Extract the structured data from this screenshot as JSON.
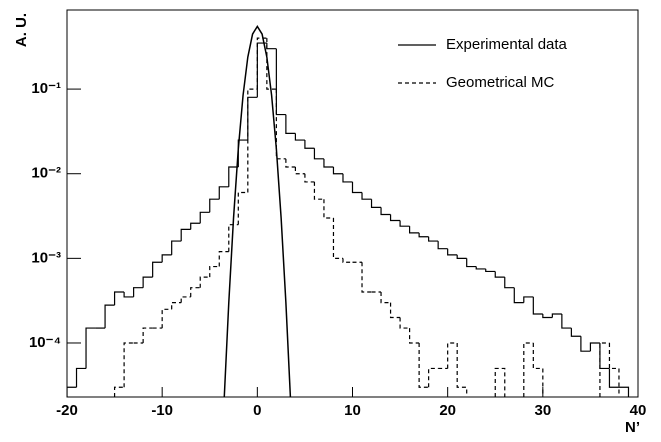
{
  "chart_data": {
    "type": "histogram",
    "x_label": "N’",
    "y_label": "A. U.",
    "bins": [
      -20,
      -19,
      -18,
      -17,
      -16,
      -15,
      -14,
      -13,
      -12,
      -11,
      -10,
      -9,
      -8,
      -7,
      -6,
      -5,
      -4,
      -3,
      -2,
      -1,
      0,
      1,
      2,
      3,
      4,
      5,
      6,
      7,
      8,
      9,
      10,
      11,
      12,
      13,
      14,
      15,
      16,
      17,
      18,
      19,
      20,
      21,
      22,
      23,
      24,
      25,
      26,
      27,
      28,
      29,
      30,
      31,
      32,
      33,
      34,
      35,
      36,
      37,
      38,
      39
    ],
    "series": [
      {
        "name": "Experimental data",
        "color": "#000000",
        "dash": false,
        "values": [
          3e-05,
          5e-05,
          0.00015,
          0.00015,
          0.00028,
          0.0004,
          0.00035,
          0.00045,
          0.0006,
          0.0009,
          0.0011,
          0.0016,
          0.0022,
          0.0026,
          0.0035,
          0.005,
          0.007,
          0.012,
          0.025,
          0.08,
          0.35,
          0.3,
          0.05,
          0.03,
          0.025,
          0.02,
          0.015,
          0.012,
          0.01,
          0.008,
          0.006,
          0.005,
          0.004,
          0.0033,
          0.0028,
          0.0024,
          0.002,
          0.0018,
          0.0016,
          0.0013,
          0.0011,
          0.001,
          0.0008,
          0.00075,
          0.0007,
          0.0006,
          0.00045,
          0.0003,
          0.00035,
          0.00022,
          0.0002,
          0.00022,
          0.00015,
          0.00012,
          8e-05,
          0.0001,
          5e-05,
          3e-05,
          3e-05
        ]
      },
      {
        "name": "Geometrical MC",
        "color": "#000000",
        "dash": true,
        "values": [
          null,
          null,
          null,
          null,
          null,
          3e-05,
          0.0001,
          0.0001,
          0.00015,
          0.00015,
          0.00025,
          0.0003,
          0.00035,
          0.00045,
          0.0006,
          0.0008,
          0.0012,
          0.0025,
          0.006,
          0.1,
          0.4,
          0.1,
          0.015,
          0.012,
          0.01,
          0.008,
          0.005,
          0.003,
          0.001,
          0.0009,
          0.0009,
          0.0004,
          0.0004,
          0.0003,
          0.0002,
          0.00015,
          0.0001,
          3e-05,
          5e-05,
          5e-05,
          0.0001,
          3e-05,
          null,
          null,
          null,
          5e-05,
          null,
          null,
          0.0001,
          5e-05,
          null,
          null,
          null,
          null,
          null,
          null,
          0.0001,
          5e-05,
          null
        ]
      }
    ],
    "fit": {
      "x": [
        -3.5,
        -3,
        -2.5,
        -2,
        -1.5,
        -1,
        -0.5,
        0,
        0.5,
        1,
        1.5,
        2,
        2.5,
        3,
        3.5
      ],
      "values": [
        2e-05,
        0.0003,
        0.003,
        0.0196,
        0.0845,
        0.239,
        0.447,
        0.55,
        0.447,
        0.239,
        0.0845,
        0.0196,
        0.003,
        0.0003,
        2e-05
      ]
    },
    "xlim": [
      -20,
      40
    ],
    "xticks": [
      -20,
      -10,
      0,
      10,
      20,
      30,
      40
    ],
    "ylim": [
      2.3e-05,
      0.86
    ],
    "log_y": true,
    "yticks": [
      {
        "value": 0.0001,
        "label": "10⁻⁴"
      },
      {
        "value": 0.001,
        "label": "10⁻³"
      },
      {
        "value": 0.01,
        "label": "10⁻²"
      },
      {
        "value": 0.1,
        "label": "10⁻¹"
      }
    ],
    "legend": "top-right"
  }
}
